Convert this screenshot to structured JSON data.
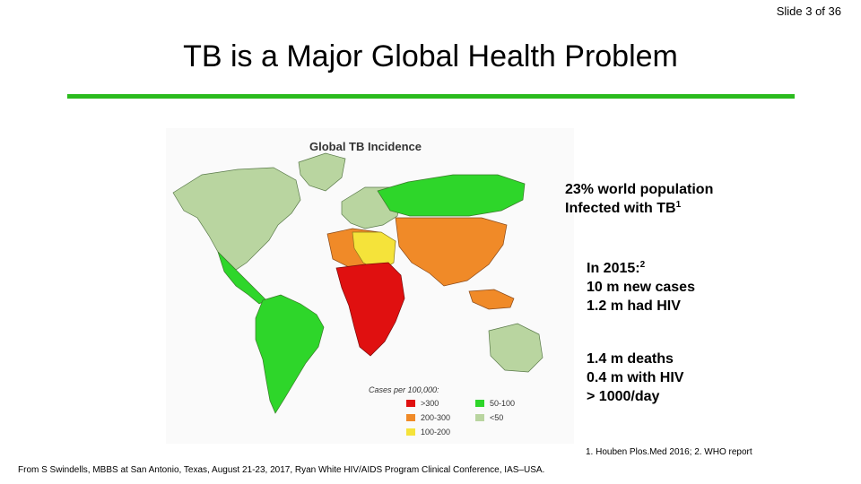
{
  "slide_counter": "Slide 3 of 36",
  "title": "TB is a Major Global Health Problem",
  "colors": {
    "accent_rule": "#2bbb1e",
    "gt300": "#e01010",
    "r200_300": "#f08a28",
    "r100_200": "#f5e33a",
    "r50_100": "#2ed62a",
    "lt50": "#b9d5a0"
  },
  "map": {
    "title": "Global TB Incidence",
    "legend_title": "Cases per 100,000:",
    "legend": [
      {
        "label": ">300",
        "color": "#e01010"
      },
      {
        "label": "200-300",
        "color": "#f08a28"
      },
      {
        "label": "100-200",
        "color": "#f5e33a"
      },
      {
        "label": "50-100",
        "color": "#2ed62a"
      },
      {
        "label": "<50",
        "color": "#b9d5a0"
      }
    ]
  },
  "stats": {
    "block1": {
      "line1": "23% world population",
      "line2": "Infected with TB",
      "sup": "1"
    },
    "block2": {
      "line1": "In 2015:",
      "sup": "2",
      "line2": "10 m new cases",
      "line3": "1.2 m had HIV"
    },
    "block3": {
      "line1": "1.4 m deaths",
      "line2": "0.4 m with HIV",
      "line3": "> 1000/day"
    }
  },
  "references": "1. Houben Plos.Med 2016; 2. WHO report",
  "credit": "From S Swindells, MBBS at San Antonio, Texas, August 21-23, 2017, Ryan White HIV/AIDS Program Clinical Conference, IAS–USA."
}
